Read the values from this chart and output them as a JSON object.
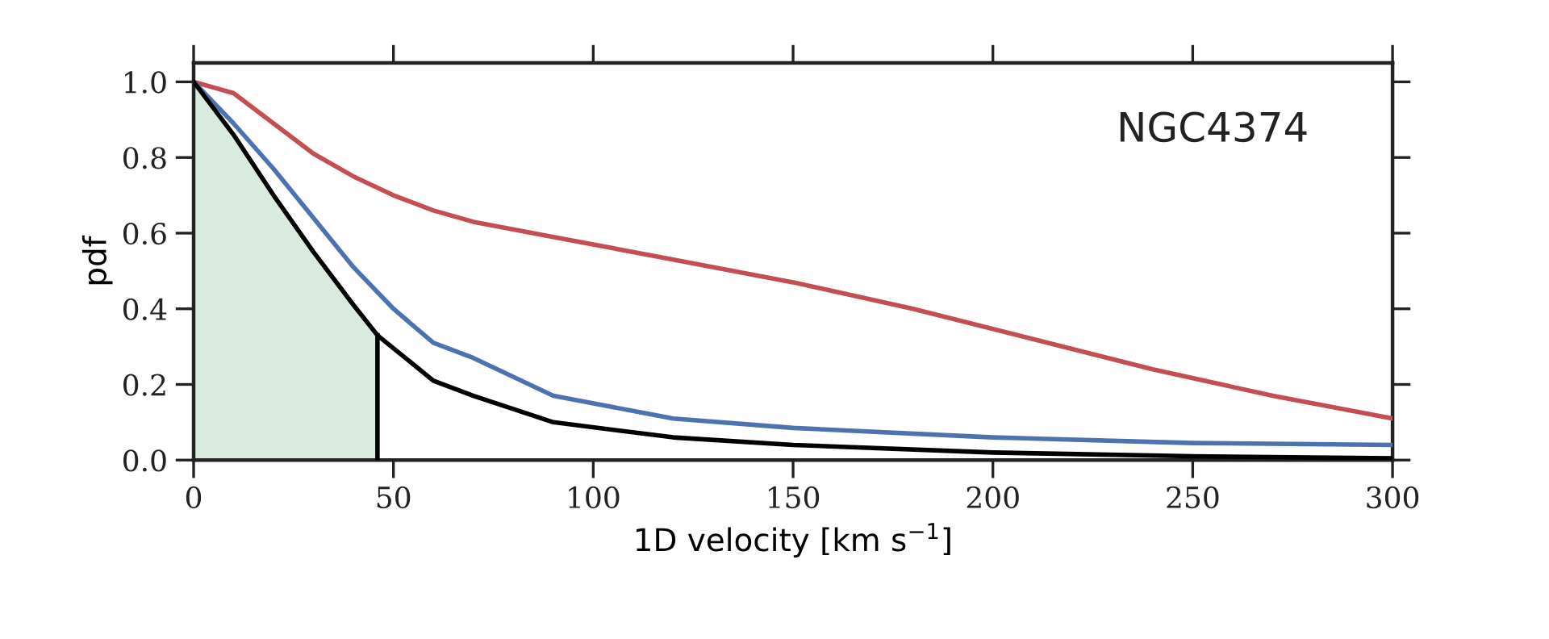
{
  "chart_data": {
    "type": "line",
    "xlabel": "1D velocity [km s$^{−1}$]",
    "ylabel": "pdf",
    "annotations": [
      "NGC4374"
    ],
    "xlim": [
      0,
      300
    ],
    "xticks": [
      0,
      50,
      100,
      150,
      200,
      250,
      300
    ],
    "ylim": [
      0,
      1.05
    ],
    "yticks": [
      {
        "value": 0,
        "label": "0.0"
      },
      0.2,
      0.4,
      0.6,
      0.8,
      {
        "value": 1,
        "label": "1.0"
      }
    ],
    "grid": false,
    "legend": false,
    "series": [
      {
        "type": "area",
        "color": "#d9ebdc",
        "x": [
          0,
          10,
          20,
          30,
          40,
          46
        ],
        "values": [
          1.0,
          0.86,
          0.7,
          0.55,
          0.41,
          0.33
        ]
      },
      {
        "color": "#c44e52",
        "x": [
          0,
          10,
          20,
          30,
          40,
          50,
          60,
          70,
          90,
          120,
          150,
          180,
          210,
          240,
          270,
          300
        ],
        "values": [
          1.0,
          0.97,
          0.89,
          0.81,
          0.75,
          0.7,
          0.66,
          0.63,
          0.59,
          0.53,
          0.47,
          0.4,
          0.32,
          0.24,
          0.17,
          0.11
        ]
      },
      {
        "color": "#4c72b0",
        "x": [
          0,
          10,
          20,
          30,
          40,
          50,
          60,
          70,
          90,
          120,
          150,
          200,
          250,
          300
        ],
        "values": [
          1.0,
          0.89,
          0.77,
          0.64,
          0.51,
          0.4,
          0.31,
          0.27,
          0.17,
          0.11,
          0.085,
          0.06,
          0.045,
          0.04
        ]
      },
      {
        "color": "#000000",
        "x": [
          46,
          46
        ],
        "values": [
          0,
          0.33
        ]
      },
      {
        "color": "#000000",
        "x": [
          0,
          10,
          20,
          30,
          40,
          46,
          60,
          70,
          90,
          120,
          150,
          200,
          250,
          300
        ],
        "values": [
          1.0,
          0.86,
          0.7,
          0.55,
          0.41,
          0.33,
          0.21,
          0.17,
          0.1,
          0.06,
          0.04,
          0.02,
          0.01,
          0.005
        ]
      }
    ]
  }
}
